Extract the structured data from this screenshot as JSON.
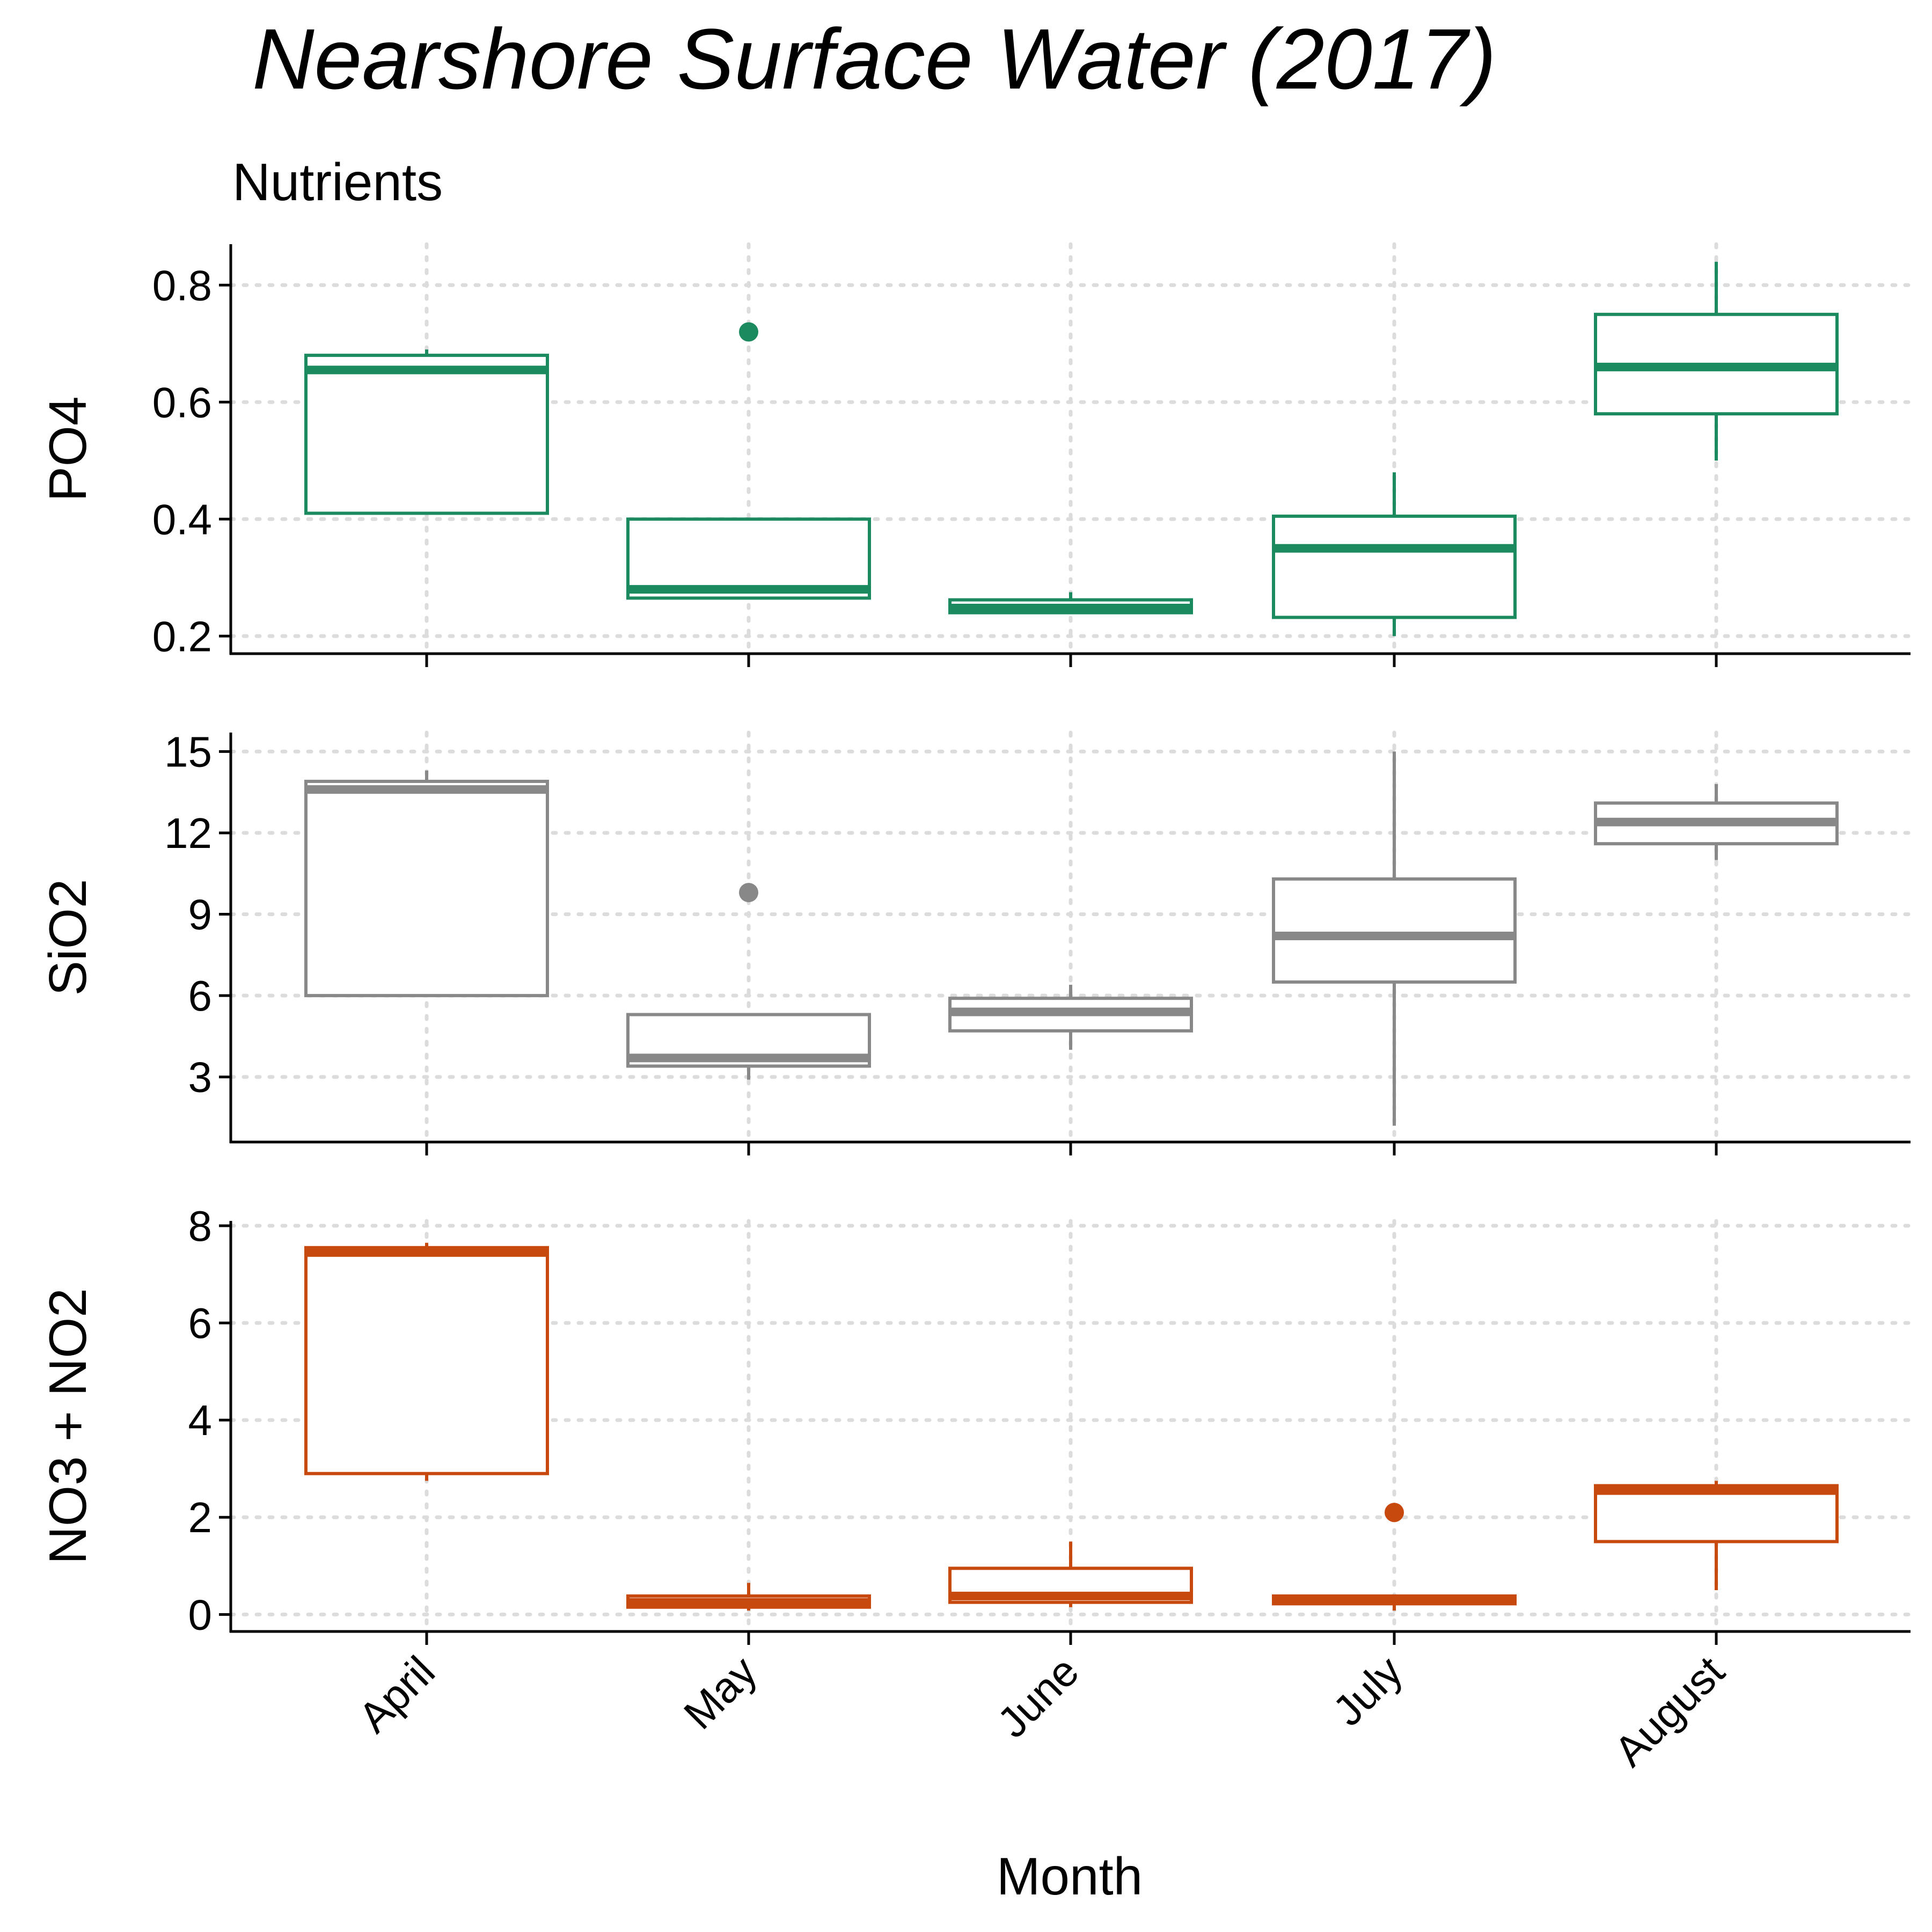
{
  "chart_data": {
    "type": "box",
    "title": "Nearshore Surface Water (2017)",
    "subtitle": "Nutrients",
    "xlabel": "Month",
    "categories": [
      "April",
      "May",
      "June",
      "July",
      "August"
    ],
    "grid": "dotted",
    "panels": [
      {
        "ylabel": "PO4",
        "color": "#1B8A5E",
        "ylim": [
          0.17,
          0.87
        ],
        "yticks": [
          0.2,
          0.4,
          0.6,
          0.8
        ],
        "ytick_labels": [
          "0.2",
          "0.4",
          "0.6",
          "0.8"
        ],
        "boxes": [
          {
            "category": "April",
            "low": 0.41,
            "q1": 0.41,
            "median": 0.655,
            "q3": 0.68,
            "high": 0.69,
            "outliers": []
          },
          {
            "category": "May",
            "low": 0.265,
            "q1": 0.265,
            "median": 0.28,
            "q3": 0.4,
            "high": 0.4,
            "outliers": [
              0.72
            ]
          },
          {
            "category": "June",
            "low": 0.24,
            "q1": 0.24,
            "median": 0.248,
            "q3": 0.262,
            "high": 0.275,
            "outliers": []
          },
          {
            "category": "July",
            "low": 0.2,
            "q1": 0.232,
            "median": 0.35,
            "q3": 0.405,
            "high": 0.48,
            "outliers": []
          },
          {
            "category": "August",
            "low": 0.5,
            "q1": 0.58,
            "median": 0.66,
            "q3": 0.75,
            "high": 0.84,
            "outliers": []
          }
        ]
      },
      {
        "ylabel": "SiO2",
        "color": "#888888",
        "ylim": [
          0.6,
          15.7
        ],
        "yticks": [
          3,
          6,
          9,
          12,
          15
        ],
        "ytick_labels": [
          "3",
          "6",
          "9",
          "12",
          "15"
        ],
        "boxes": [
          {
            "category": "April",
            "low": 6.0,
            "q1": 6.0,
            "median": 13.6,
            "q3": 13.9,
            "high": 14.3,
            "outliers": []
          },
          {
            "category": "May",
            "low": 2.9,
            "q1": 3.4,
            "median": 3.7,
            "q3": 5.3,
            "high": 5.3,
            "outliers": [
              9.8
            ]
          },
          {
            "category": "June",
            "low": 4.0,
            "q1": 4.7,
            "median": 5.4,
            "q3": 5.9,
            "high": 6.4,
            "outliers": []
          },
          {
            "category": "July",
            "low": 1.2,
            "q1": 6.5,
            "median": 8.2,
            "q3": 10.3,
            "high": 15.0,
            "outliers": []
          },
          {
            "category": "August",
            "low": 11.0,
            "q1": 11.6,
            "median": 12.4,
            "q3": 13.1,
            "high": 13.8,
            "outliers": []
          }
        ]
      },
      {
        "ylabel": "NO3 + NO2",
        "color": "#C8490E",
        "ylim": [
          -0.35,
          8.1
        ],
        "yticks": [
          0,
          2,
          4,
          6,
          8
        ],
        "ytick_labels": [
          "0",
          "2",
          "4",
          "6",
          "8"
        ],
        "boxes": [
          {
            "category": "April",
            "low": 2.75,
            "q1": 2.9,
            "median": 7.45,
            "q3": 7.55,
            "high": 7.65,
            "outliers": []
          },
          {
            "category": "May",
            "low": 0.08,
            "q1": 0.15,
            "median": 0.25,
            "q3": 0.38,
            "high": 0.65,
            "outliers": []
          },
          {
            "category": "June",
            "low": 0.15,
            "q1": 0.25,
            "median": 0.38,
            "q3": 0.95,
            "high": 1.5,
            "outliers": []
          },
          {
            "category": "July",
            "low": 0.08,
            "q1": 0.22,
            "median": 0.28,
            "q3": 0.38,
            "high": 0.38,
            "outliers": [
              2.1
            ]
          },
          {
            "category": "August",
            "low": 0.5,
            "q1": 1.5,
            "median": 2.55,
            "q3": 2.65,
            "high": 2.75,
            "outliers": []
          }
        ]
      }
    ]
  }
}
